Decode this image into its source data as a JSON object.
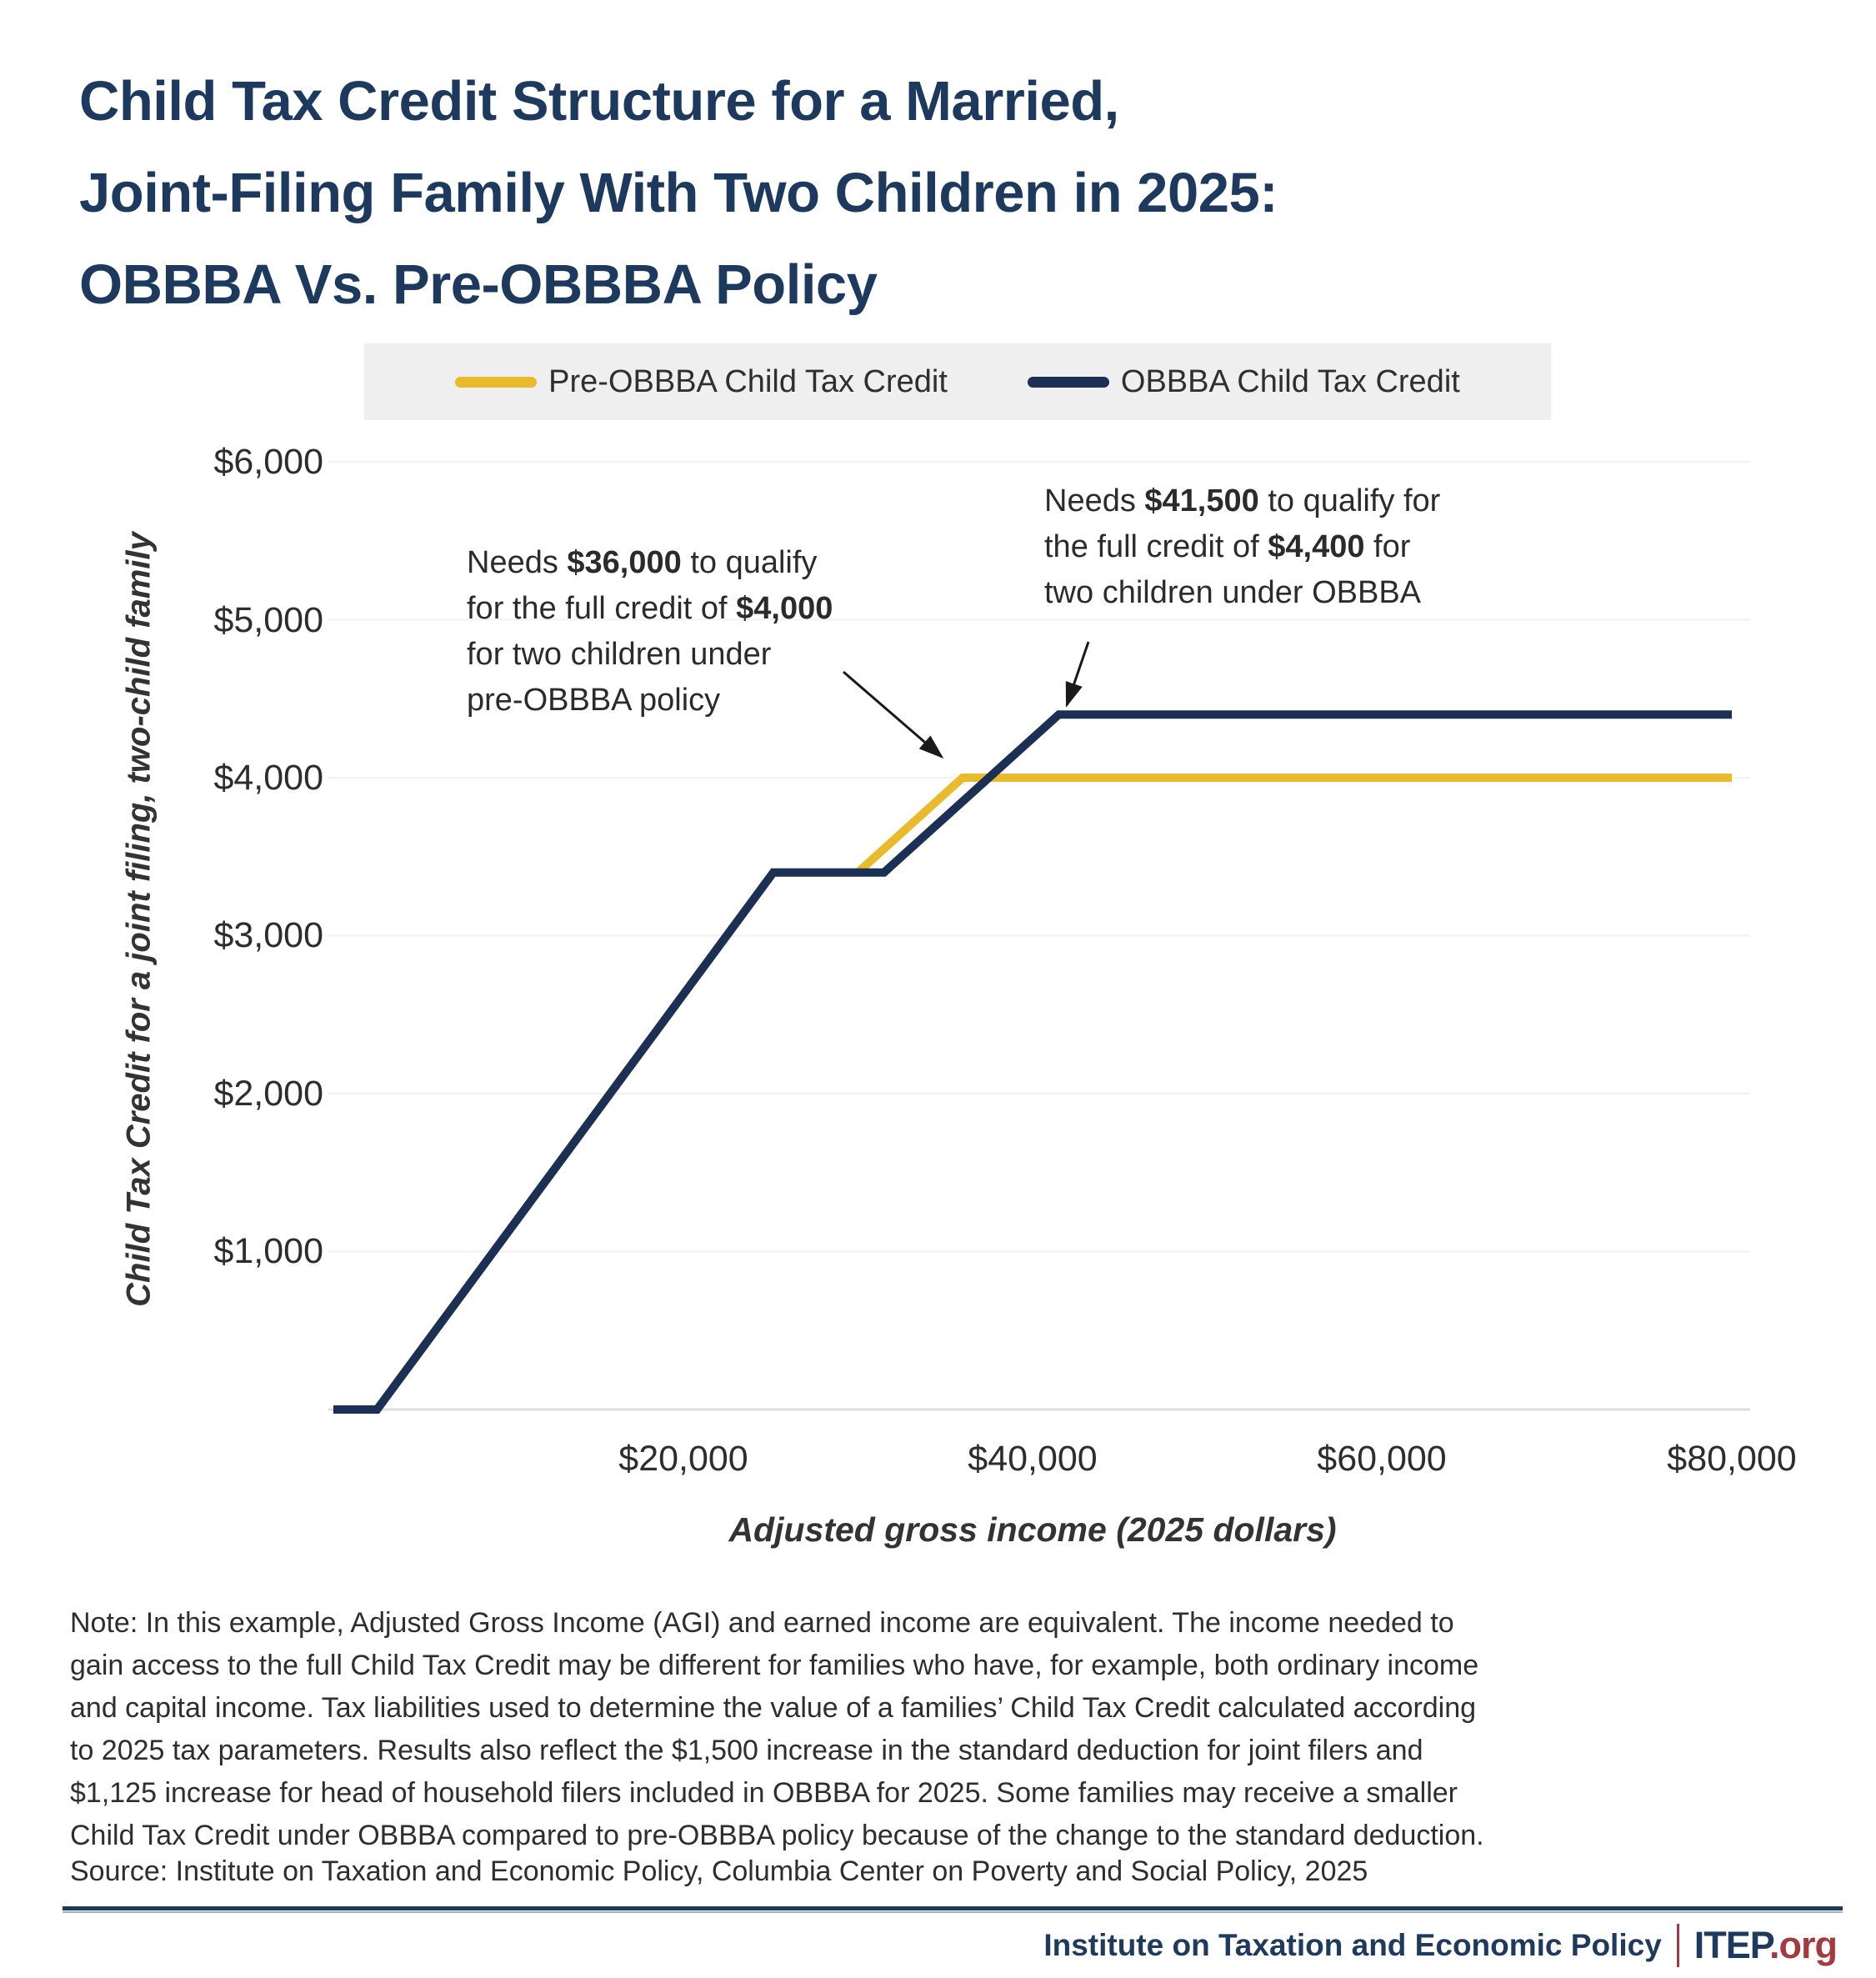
{
  "header": {
    "title_lines": [
      "Child Tax Credit Structure for a Married,",
      "Joint-Filing Family With Two Children in 2025:",
      "OBBBA Vs. Pre-OBBBA Policy"
    ]
  },
  "chart_data": {
    "type": "line",
    "title": "Child Tax Credit Structure for a Married, Joint-Filing Family With Two Children in 2025: OBBBA Vs. Pre-OBBBA Policy",
    "xlabel": "Adjusted gross income (2025 dollars)",
    "ylabel": "Child Tax Credit for a joint filing, two-child family",
    "xlim": [
      0,
      80000
    ],
    "ylim": [
      0,
      6000
    ],
    "grid": "horizontal",
    "legend_position": "top",
    "x_ticks": [
      {
        "label": "$20,000",
        "value": 20000
      },
      {
        "label": "$40,000",
        "value": 40000
      },
      {
        "label": "$60,000",
        "value": 60000
      },
      {
        "label": "$80,000",
        "value": 80000
      }
    ],
    "y_ticks": [
      {
        "label": "$6,000",
        "value": 6000
      },
      {
        "label": "$5,000",
        "value": 5000
      },
      {
        "label": "$4,000",
        "value": 4000
      },
      {
        "label": "$3,000",
        "value": 3000
      },
      {
        "label": "$2,000",
        "value": 2000
      },
      {
        "label": "$1,000",
        "value": 1000
      }
    ],
    "series": [
      {
        "name": "Pre-OBBBA Child Tax Credit",
        "color": "#e9ba2b",
        "points": [
          [
            0,
            0
          ],
          [
            2500,
            0
          ],
          [
            25167,
            3400
          ],
          [
            30000,
            3400
          ],
          [
            36000,
            4000
          ],
          [
            80000,
            4000
          ]
        ]
      },
      {
        "name": "OBBBA Child Tax Credit",
        "color": "#1b3054",
        "points": [
          [
            0,
            0
          ],
          [
            2500,
            0
          ],
          [
            25167,
            3400
          ],
          [
            31500,
            3400
          ],
          [
            41500,
            4400
          ],
          [
            80000,
            4400
          ]
        ]
      }
    ],
    "annotations": [
      {
        "target_value": {
          "x": 36000,
          "y": 4000
        },
        "lines": [
          [
            {
              "t": "Needs "
            },
            {
              "t": "$36,000",
              "b": true
            },
            {
              "t": " to qualify"
            }
          ],
          [
            {
              "t": "for the full credit of "
            },
            {
              "t": "$4,000",
              "b": true
            }
          ],
          [
            {
              "t": "for two children under"
            }
          ],
          [
            {
              "t": "pre-OBBBA policy"
            }
          ]
        ]
      },
      {
        "target_value": {
          "x": 41500,
          "y": 4400
        },
        "lines": [
          [
            {
              "t": "Needs "
            },
            {
              "t": "$41,500",
              "b": true
            },
            {
              "t": " to qualify for"
            }
          ],
          [
            {
              "t": "the full credit of "
            },
            {
              "t": "$4,400",
              "b": true
            },
            {
              "t": " for"
            }
          ],
          [
            {
              "t": "two children under OBBBA"
            }
          ]
        ]
      }
    ]
  },
  "note": {
    "lines": [
      "Note: In this example, Adjusted Gross Income (AGI) and earned income are equivalent. The income needed to",
      "gain access to the full Child Tax Credit may be different for families who have, for example, both ordinary income",
      "and capital income. Tax liabilities used to determine the value of a families’ Child Tax Credit calculated according",
      "to 2025 tax parameters. Results also reflect the $1,500 increase in the standard deduction for joint filers and",
      "$1,125 increase for head of household filers included in OBBBA for 2025. Some families may receive a smaller",
      "Child Tax Credit under OBBBA compared to pre-OBBBA policy because of the change to the standard deduction."
    ]
  },
  "source": {
    "text": "Source: Institute on Taxation and Economic Policy, Columbia Center on Poverty and Social Policy, 2025"
  },
  "footer": {
    "organization": "Institute on Taxation and Economic Policy",
    "brand": "ITEP",
    "brand_suffix": ".org"
  }
}
